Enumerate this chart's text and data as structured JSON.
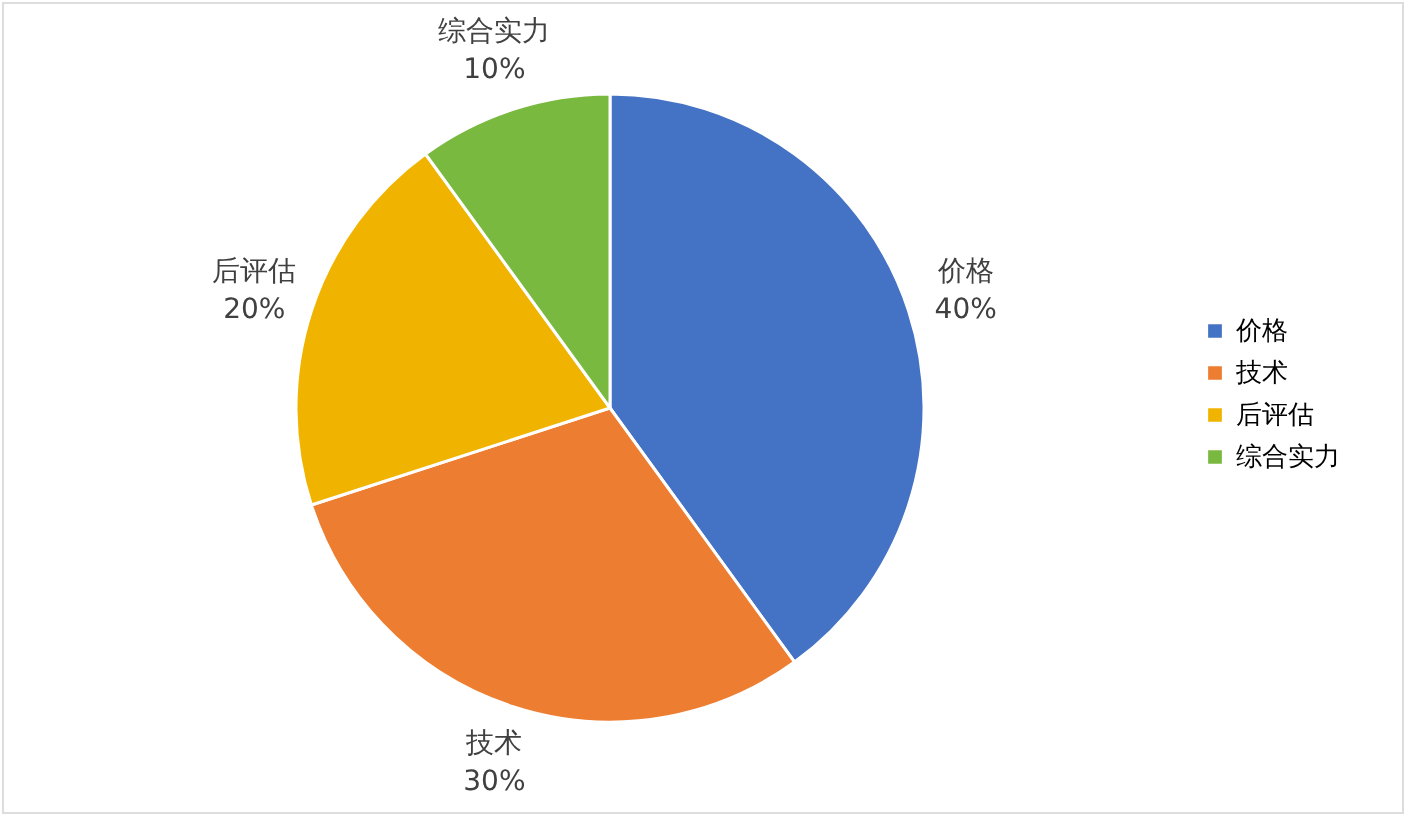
{
  "chart_data": {
    "type": "pie",
    "categories": [
      "价格",
      "技术",
      "后评估",
      "综合实力"
    ],
    "values": [
      40,
      30,
      20,
      10
    ],
    "value_labels": [
      "40%",
      "30%",
      "20%",
      "10%"
    ],
    "colors": [
      "#4472c4",
      "#ed7d31",
      "#f0b400",
      "#7ab940"
    ],
    "legend": "right"
  }
}
